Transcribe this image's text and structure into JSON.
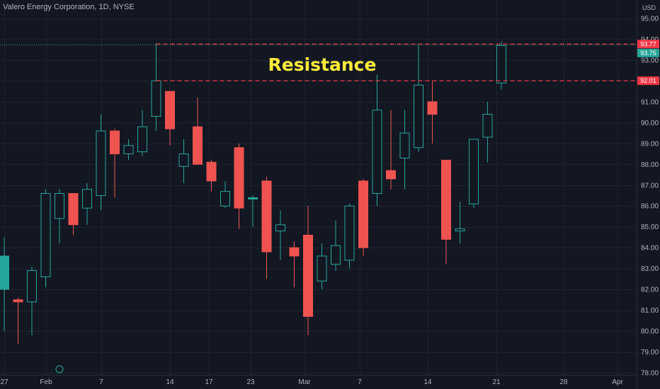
{
  "header": {
    "symbol_title": "Valero Energy Corporation, 1D, NYSE"
  },
  "axis": {
    "currency": "USD"
  },
  "chart_data": {
    "type": "candlestick",
    "title": "Valero Energy Corporation, 1D, NYSE",
    "ylim": [
      77.8,
      95.6
    ],
    "y_ticks": [
      "78.00",
      "79.00",
      "80.00",
      "81.00",
      "82.00",
      "83.00",
      "84.00",
      "85.00",
      "86.00",
      "87.00",
      "88.00",
      "89.00",
      "90.00",
      "91.00",
      "92.00",
      "93.00",
      "94.00",
      "95.00"
    ],
    "x_ticks": [
      "27",
      "Feb",
      "7",
      "14",
      "17",
      "23",
      "Mar",
      "7",
      "14",
      "21",
      "28",
      "Apr"
    ],
    "candles": [
      {
        "date": "Jan 26",
        "o": 82.0,
        "h": 84.5,
        "l": 80.0,
        "c": 83.6
      },
      {
        "date": "Jan 27",
        "o": 81.5,
        "h": 81.6,
        "l": 79.4,
        "c": 81.4
      },
      {
        "date": "Jan 28",
        "o": 81.4,
        "h": 83.1,
        "l": 79.8,
        "c": 82.9
      },
      {
        "date": "Jan 31",
        "o": 82.6,
        "h": 86.8,
        "l": 82.1,
        "c": 86.6
      },
      {
        "date": "Feb 1",
        "o": 85.4,
        "h": 86.8,
        "l": 84.2,
        "c": 86.6
      },
      {
        "date": "Feb 2",
        "o": 86.6,
        "h": 86.6,
        "l": 84.6,
        "c": 85.1
      },
      {
        "date": "Feb 3",
        "o": 85.9,
        "h": 87.1,
        "l": 85.1,
        "c": 86.8
      },
      {
        "date": "Feb 4",
        "o": 86.5,
        "h": 90.4,
        "l": 85.8,
        "c": 89.6
      },
      {
        "date": "Feb 7",
        "o": 89.6,
        "h": 89.7,
        "l": 86.4,
        "c": 88.5
      },
      {
        "date": "Feb 8",
        "o": 88.5,
        "h": 89.2,
        "l": 88.2,
        "c": 88.9
      },
      {
        "date": "Feb 9",
        "o": 88.6,
        "h": 90.6,
        "l": 88.4,
        "c": 89.8
      },
      {
        "date": "Feb 10",
        "o": 90.3,
        "h": 93.8,
        "l": 89.6,
        "c": 92.0
      },
      {
        "date": "Feb 11",
        "o": 91.5,
        "h": 91.5,
        "l": 88.9,
        "c": 89.7
      },
      {
        "date": "Feb 14",
        "o": 87.9,
        "h": 89.2,
        "l": 87.1,
        "c": 88.5
      },
      {
        "date": "Feb 15",
        "o": 89.8,
        "h": 91.2,
        "l": 88.0,
        "c": 88.0
      },
      {
        "date": "Feb 16",
        "o": 88.1,
        "h": 88.2,
        "l": 86.7,
        "c": 87.2
      },
      {
        "date": "Feb 17",
        "o": 86.0,
        "h": 87.2,
        "l": 85.9,
        "c": 86.7
      },
      {
        "date": "Feb 18",
        "o": 88.8,
        "h": 89.0,
        "l": 84.9,
        "c": 85.9
      },
      {
        "date": "Feb 22",
        "o": 86.4,
        "h": 86.5,
        "l": 85.0,
        "c": 86.4
      },
      {
        "date": "Feb 23",
        "o": 87.2,
        "h": 87.4,
        "l": 82.5,
        "c": 83.8
      },
      {
        "date": "Feb 24",
        "o": 84.8,
        "h": 85.8,
        "l": 83.4,
        "c": 85.1
      },
      {
        "date": "Feb 25",
        "o": 84.0,
        "h": 84.3,
        "l": 82.1,
        "c": 83.6
      },
      {
        "date": "Feb 28",
        "o": 84.6,
        "h": 86.0,
        "l": 79.8,
        "c": 80.7
      },
      {
        "date": "Mar 1",
        "o": 82.4,
        "h": 84.2,
        "l": 82.0,
        "c": 83.6
      },
      {
        "date": "Mar 2",
        "o": 83.2,
        "h": 85.3,
        "l": 82.9,
        "c": 84.1
      },
      {
        "date": "Mar 3",
        "o": 83.4,
        "h": 86.1,
        "l": 83.0,
        "c": 86.0
      },
      {
        "date": "Mar 4",
        "o": 87.2,
        "h": 87.3,
        "l": 83.6,
        "c": 84.0
      },
      {
        "date": "Mar 7",
        "o": 86.6,
        "h": 92.3,
        "l": 86.0,
        "c": 90.6
      },
      {
        "date": "Mar 8",
        "o": 87.7,
        "h": 90.6,
        "l": 86.8,
        "c": 87.3
      },
      {
        "date": "Mar 9",
        "o": 88.3,
        "h": 90.6,
        "l": 86.8,
        "c": 89.5
      },
      {
        "date": "Mar 10",
        "o": 88.8,
        "h": 93.8,
        "l": 88.6,
        "c": 91.8
      },
      {
        "date": "Mar 11",
        "o": 91.0,
        "h": 92.0,
        "l": 89.0,
        "c": 90.4
      },
      {
        "date": "Mar 14",
        "o": 88.2,
        "h": 88.2,
        "l": 83.2,
        "c": 84.4
      },
      {
        "date": "Mar 15",
        "o": 84.8,
        "h": 86.2,
        "l": 84.2,
        "c": 84.9
      },
      {
        "date": "Mar 16",
        "o": 86.1,
        "h": 89.2,
        "l": 85.9,
        "c": 89.2
      },
      {
        "date": "Mar 17",
        "o": 89.3,
        "h": 91.0,
        "l": 88.1,
        "c": 90.4
      },
      {
        "date": "Mar 18",
        "o": 91.9,
        "h": 93.9,
        "l": 91.6,
        "c": 93.7
      }
    ],
    "annotation": {
      "text": "Resistance",
      "lines": [
        {
          "value": 93.77,
          "label": "93.77",
          "from_index": 11
        },
        {
          "value": 92.01,
          "label": "92.01",
          "from_index": 11
        }
      ]
    },
    "last_price": {
      "value": 93.75,
      "label": "93.75"
    },
    "colors": {
      "up": "#26a69a",
      "down": "#ef5350",
      "background": "#131722",
      "grid": "#1f2330",
      "resistance": "#f23645",
      "annotation": "#ffeb3b"
    }
  }
}
